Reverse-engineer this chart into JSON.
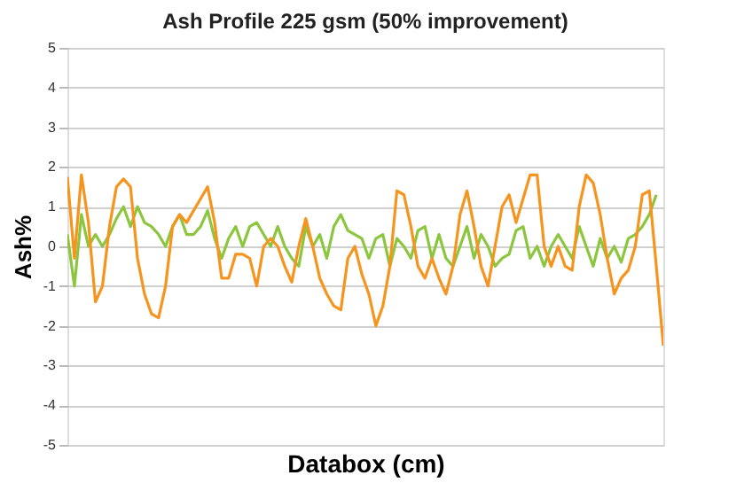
{
  "chart_data": {
    "type": "line",
    "title": "Ash Profile 225 gsm (50% improvement)",
    "xlabel": "Databox (cm)",
    "ylabel": "Ash%",
    "categories": [
      null,
      null,
      null,
      null,
      null,
      null,
      null,
      null,
      null,
      null,
      null,
      null,
      null,
      null,
      null,
      null,
      null,
      null,
      null,
      null,
      null,
      null,
      null,
      null,
      null,
      null,
      null,
      null,
      null,
      null,
      null,
      null,
      null,
      null,
      null,
      null,
      null,
      null,
      null,
      null,
      null,
      null,
      null,
      null,
      null,
      null,
      null,
      null,
      null,
      null,
      null,
      null,
      null,
      null,
      null,
      null,
      null,
      null,
      null,
      null,
      null,
      null,
      null,
      null,
      null,
      null,
      null,
      null,
      null,
      null,
      null,
      null,
      null,
      null,
      null,
      null,
      null,
      null,
      null,
      null,
      null,
      null,
      null,
      null,
      null,
      null
    ],
    "ylim": [
      -5,
      5
    ],
    "yticks": [
      -5,
      -4,
      -3,
      -2,
      -1,
      0,
      1,
      2,
      3,
      4,
      5
    ],
    "grid": "y",
    "tick_labels": "y",
    "legend": false,
    "marker": "none",
    "line_style": "solid",
    "series": [
      {
        "color": "#8cc63f",
        "values": [
          0.3,
          -1,
          0.8,
          0,
          0.3,
          0,
          0.3,
          0.7,
          1,
          0.5,
          1,
          0.6,
          0.5,
          0.3,
          0,
          0.5,
          0.8,
          0.3,
          0.3,
          0.5,
          0.9,
          0.2,
          -0.3,
          0.2,
          0.5,
          0,
          0.5,
          0.6,
          0.3,
          0,
          0.5,
          0,
          -0.3,
          -0.5,
          0.5,
          0,
          0.3,
          -0.3,
          0.5,
          0.8,
          0.4,
          0.3,
          0.2,
          -0.3,
          0.2,
          0.3,
          -0.5,
          0.2,
          0,
          -0.3,
          0.4,
          0.5,
          -0.3,
          0.3,
          -0.3,
          -0.5,
          0,
          0.5,
          -0.3,
          0.3,
          0,
          -0.5,
          -0.3,
          -0.2,
          0.4,
          0.5,
          -0.3,
          0,
          -0.5,
          0,
          0.3,
          0,
          -0.3,
          0.5,
          0,
          -0.5,
          0.2,
          -0.3,
          0,
          -0.4,
          0.2,
          0.3,
          0.5,
          0.8,
          1.3,
          null
        ]
      },
      {
        "color": "#f7941d",
        "values": [
          1.75,
          -0.3,
          1.8,
          0.6,
          -1.4,
          -1,
          0.5,
          1.5,
          1.7,
          1.5,
          -0.3,
          -1.2,
          -1.7,
          -1.8,
          -1,
          0.5,
          0.8,
          0.6,
          0.9,
          1.2,
          1.5,
          0.6,
          -0.8,
          -0.8,
          -0.2,
          -0.2,
          -0.3,
          -1,
          0,
          0.2,
          0,
          -0.5,
          -0.9,
          0,
          0.7,
          0,
          -0.8,
          -1.2,
          -1.5,
          -1.6,
          -0.3,
          0,
          -0.7,
          -1.2,
          -2,
          -1.5,
          -0.5,
          1.4,
          1.3,
          0.5,
          -0.5,
          -0.8,
          -0.3,
          -0.8,
          -1.2,
          -0.5,
          0.8,
          1.4,
          0.5,
          -0.5,
          -1,
          0,
          1,
          1.3,
          0.6,
          1.2,
          1.8,
          1.8,
          0,
          -0.5,
          0,
          -0.5,
          -0.6,
          1.0,
          1.8,
          1.6,
          0.8,
          -0.3,
          -1.2,
          -0.8,
          -0.6,
          0,
          1.3,
          1.4,
          -0.5,
          -2.5
        ]
      }
    ]
  }
}
